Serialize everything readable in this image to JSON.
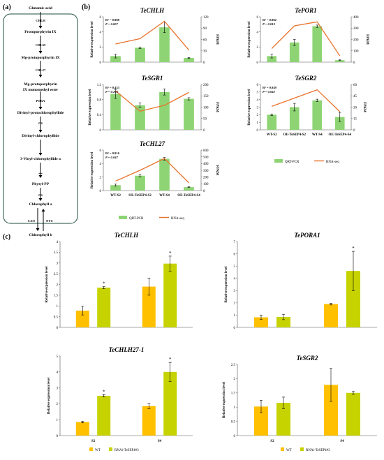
{
  "colors": {
    "qpcr_green": "#8ED474",
    "rnaseq_orange": "#E9722B",
    "wt_orange": "#FFC000",
    "rnai_olive": "#C6D300",
    "pathway_border": "#1C4E3E"
  },
  "panels": {
    "a": "(a)",
    "b": "(b)",
    "c": "(c)"
  },
  "pathway": {
    "steps": [
      "Glutamic acid",
      "Protoporphyrin IX",
      "Mg-protoporphyrin IX",
      "Mg-protoporphyrin\nIX monomethyl ester",
      "Divinyl-protochlorophyllide",
      "Divinyl-chlorophyllide",
      "3-Vinyl-chlorophyllide a",
      "Phytyl-PP",
      "Chlorophyll a",
      "Chlorophyll b"
    ],
    "enzymes": [
      "CHLH",
      "CHLM",
      "CHL27",
      "PORA",
      "CS"
    ],
    "plus": "+",
    "cao": "CAO",
    "nyc": "NYC"
  },
  "legend_b": {
    "qpcr": "QRT-PCR",
    "rnaseq": "RNA-seq"
  },
  "legend_c": {
    "wt": "WT",
    "rnai": "RNAi-TeSEP4#3"
  },
  "chart_data": [
    {
      "panel": "b",
      "type": "bar",
      "title": "TeCHLH",
      "r2": "R² = 0.988",
      "p": "P = 0.007",
      "categories": [
        "WT-S2",
        "OE-TeSEP4-S2",
        "WT-S4",
        "OE-TeSEP4-S4"
      ],
      "ylabel": "Relative expression level",
      "y2label": "FPKM",
      "ylim": [
        0,
        6
      ],
      "yticks": [
        "0",
        "2",
        "4",
        "6"
      ],
      "y2lim": [
        0,
        120
      ],
      "y2ticks": [
        "0",
        "30",
        "60",
        "90",
        "120"
      ],
      "series": [
        {
          "name": "QRT-PCR",
          "values": [
            0.8,
            1.9,
            4.6,
            0.55
          ],
          "errors": [
            0.25,
            0.1,
            0.7,
            0.06
          ]
        },
        {
          "name": "RNA-seq",
          "values": [
            48,
            62,
            108,
            32
          ]
        }
      ],
      "show_xlabels": false
    },
    {
      "panel": "b",
      "type": "bar",
      "title": "TePOR1",
      "r2": "R² = 0.982",
      "p": "P = 0.010",
      "categories": [
        "WT-S2",
        "OE-TeSEP4-S2",
        "WT-S4",
        "OE-TeSEP4-S4"
      ],
      "ylabel": "Relative expression level",
      "y2label": "FPKM",
      "ylim": [
        0,
        6
      ],
      "yticks": [
        "0",
        "2",
        "4",
        "6"
      ],
      "y2lim": [
        0,
        400
      ],
      "y2ticks": [
        "0",
        "100",
        "200",
        "300",
        "400"
      ],
      "series": [
        {
          "name": "QRT-PCR",
          "values": [
            0.8,
            2.6,
            4.75,
            0.25
          ],
          "errors": [
            0.25,
            0.4,
            0.15,
            0.05
          ]
        },
        {
          "name": "RNA-seq",
          "values": [
            120,
            320,
            355,
            55
          ]
        }
      ],
      "show_xlabels": false
    },
    {
      "panel": "b",
      "type": "bar",
      "title": "TeSGR1",
      "r2": "R² = 0.433",
      "p": "P = 0.293",
      "categories": [
        "WT-S2",
        "OE-TeSEP4-S2",
        "WT-S4",
        "OE-TeSEP4-S4"
      ],
      "ylabel": "Relative expression level",
      "y2label": "FPKM",
      "ylim": [
        0,
        1.2
      ],
      "yticks": [
        "0",
        "0.4",
        "0.8",
        "1.2"
      ],
      "y2lim": [
        0,
        200
      ],
      "y2ticks": [
        "0",
        "50",
        "100",
        "150",
        "200"
      ],
      "series": [
        {
          "name": "QRT-PCR",
          "values": [
            0.95,
            0.65,
            1.0,
            0.82
          ],
          "errors": [
            0.12,
            0.06,
            0.08,
            0.03
          ]
        },
        {
          "name": "RNA-seq",
          "values": [
            172,
            82,
            108,
            165
          ]
        }
      ],
      "show_xlabels": false
    },
    {
      "panel": "b",
      "type": "bar",
      "title": "TeSGR2",
      "r2": "R² = 0.949",
      "p": "P = 0.042",
      "categories": [
        "WT-S2",
        "OE-TeSEP4-S2",
        "WT-S4",
        "OE-TeSEP4-S4"
      ],
      "ylabel": "Relative expression level",
      "y2label": "FPKM",
      "ylim": [
        0,
        6
      ],
      "yticks": [
        "0",
        "1",
        "2",
        "3",
        "4",
        "5",
        "6"
      ],
      "y2lim": [
        0,
        60
      ],
      "y2ticks": [
        "0",
        "15",
        "30",
        "45",
        "60"
      ],
      "series": [
        {
          "name": "QRT-PCR",
          "values": [
            2.0,
            3.0,
            3.9,
            1.7
          ],
          "errors": [
            0.1,
            0.5,
            0.15,
            0.6
          ]
        },
        {
          "name": "RNA-seq",
          "values": [
            31,
            42,
            53,
            24
          ]
        }
      ],
      "show_xlabels": true
    },
    {
      "panel": "b",
      "type": "bar",
      "title": "TeCHL27",
      "r2": "R² = 0.916",
      "p": "P = 0.047",
      "categories": [
        "WT-S2",
        "OE-TeSEP4-S2",
        "WT-S4",
        "OE-TeSEP4-S4"
      ],
      "ylabel": "Relative expression level",
      "y2label": "FPKM",
      "ylim": [
        0,
        6
      ],
      "yticks": [
        "0",
        "2",
        "4",
        "6"
      ],
      "y2lim": [
        0,
        600
      ],
      "y2ticks": [
        "0",
        "100",
        "200",
        "300",
        "400",
        "500",
        "600"
      ],
      "series": [
        {
          "name": "QRT-PCR",
          "values": [
            0.8,
            2.2,
            4.7,
            0.5
          ],
          "errors": [
            0.15,
            0.2,
            0.2,
            0.05
          ]
        },
        {
          "name": "RNA-seq",
          "values": [
            140,
            300,
            475,
            115
          ]
        }
      ],
      "show_xlabels": true
    },
    {
      "panel": "c",
      "type": "bar",
      "title": "TeCHLH",
      "categories": [
        "S2",
        "S4"
      ],
      "ylabel": "Relative expression level",
      "ylim": [
        0,
        4
      ],
      "yticks": [
        "0",
        "0.5",
        "1",
        "1.5",
        "2",
        "2.5",
        "3",
        "3.5",
        "4"
      ],
      "series": [
        {
          "name": "WT",
          "values": [
            0.78,
            1.9
          ],
          "errors": [
            0.2,
            0.4
          ]
        },
        {
          "name": "RNAi-TeSEP4#3",
          "values": [
            1.85,
            2.97
          ],
          "errors": [
            0.05,
            0.35
          ]
        }
      ],
      "star": [
        false,
        true,
        false,
        true
      ],
      "star_label": "*",
      "show_xlabels": false
    },
    {
      "panel": "c",
      "type": "bar",
      "title": "TePORA1",
      "categories": [
        "S2",
        "S4"
      ],
      "ylabel": "Relative expression level",
      "ylim": [
        0,
        7
      ],
      "yticks": [
        "0",
        "1",
        "2",
        "3",
        "4",
        "5",
        "6",
        "7"
      ],
      "series": [
        {
          "name": "WT",
          "values": [
            0.82,
            1.9
          ],
          "errors": [
            0.18,
            0.07
          ]
        },
        {
          "name": "RNAi-TeSEP4#3",
          "values": [
            0.85,
            4.6
          ],
          "errors": [
            0.22,
            1.6
          ]
        }
      ],
      "star": [
        false,
        false,
        false,
        true
      ],
      "star_label": "*",
      "show_xlabels": false
    },
    {
      "panel": "c",
      "type": "bar",
      "title": "TeCHLH27-1",
      "categories": [
        "S2",
        "S4"
      ],
      "ylabel": "Relative expression level",
      "ylim": [
        0,
        5
      ],
      "yticks": [
        "0",
        "1",
        "2",
        "3",
        "4",
        "5"
      ],
      "series": [
        {
          "name": "WT",
          "values": [
            0.85,
            1.85
          ],
          "errors": [
            0.05,
            0.15
          ]
        },
        {
          "name": "RNAi-TeSEP4#3",
          "values": [
            2.5,
            4.0
          ],
          "errors": [
            0.07,
            0.6
          ]
        }
      ],
      "star": [
        false,
        true,
        false,
        true
      ],
      "star_label": "*",
      "show_xlabels": true
    },
    {
      "panel": "c",
      "type": "bar",
      "title": "TeSGR2",
      "categories": [
        "S2",
        "S4"
      ],
      "ylabel": "Relative expression level",
      "ylim": [
        0,
        2.5
      ],
      "yticks": [
        "0",
        "0.5",
        "1",
        "1.5",
        "2",
        "2.5"
      ],
      "series": [
        {
          "name": "WT",
          "values": [
            1.02,
            1.78
          ],
          "errors": [
            0.22,
            0.58
          ]
        },
        {
          "name": "RNAi-TeSEP4#3",
          "values": [
            1.15,
            1.5
          ],
          "errors": [
            0.2,
            0.05
          ]
        }
      ],
      "star": [
        false,
        false,
        false,
        false
      ],
      "star_label": "*",
      "show_xlabels": true
    }
  ]
}
